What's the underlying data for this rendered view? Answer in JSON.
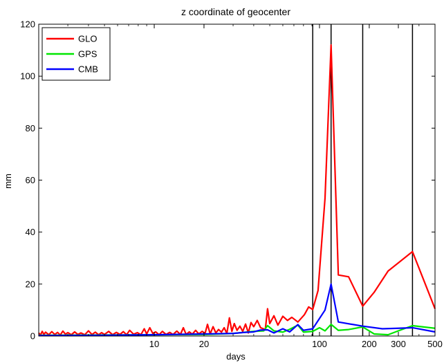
{
  "chart_data": {
    "type": "line",
    "title": "z coordinate of geocenter",
    "xlabel": "days",
    "ylabel": "mm",
    "xscale": "log",
    "xlim": [
      2,
      500
    ],
    "ylim": [
      0,
      120
    ],
    "xticks": [
      10,
      20,
      100,
      200,
      300,
      500
    ],
    "yticks": [
      0,
      20,
      40,
      60,
      80,
      100,
      120
    ],
    "grid": false,
    "legend_position": "top-left",
    "vertical_lines_x": [
      91,
      117.5,
      182.6,
      365.25
    ],
    "series": [
      {
        "name": "GLO",
        "color": "#ff0000",
        "points": [
          [
            2.0,
            1.2
          ],
          [
            2.05,
            0.4
          ],
          [
            2.1,
            1.8
          ],
          [
            2.15,
            0.6
          ],
          [
            2.2,
            1.5
          ],
          [
            2.3,
            0.5
          ],
          [
            2.4,
            1.7
          ],
          [
            2.5,
            0.6
          ],
          [
            2.6,
            1.4
          ],
          [
            2.7,
            0.4
          ],
          [
            2.8,
            1.9
          ],
          [
            2.9,
            0.7
          ],
          [
            3.0,
            1.3
          ],
          [
            3.15,
            0.5
          ],
          [
            3.3,
            1.6
          ],
          [
            3.45,
            0.6
          ],
          [
            3.6,
            1.2
          ],
          [
            3.8,
            0.5
          ],
          [
            4.0,
            2.0
          ],
          [
            4.2,
            0.6
          ],
          [
            4.4,
            1.5
          ],
          [
            4.6,
            0.5
          ],
          [
            4.8,
            1.3
          ],
          [
            5.0,
            0.6
          ],
          [
            5.3,
            1.8
          ],
          [
            5.6,
            0.5
          ],
          [
            5.9,
            1.4
          ],
          [
            6.2,
            0.6
          ],
          [
            6.5,
            1.7
          ],
          [
            6.8,
            0.5
          ],
          [
            7.1,
            2.2
          ],
          [
            7.5,
            0.7
          ],
          [
            7.9,
            1.3
          ],
          [
            8.3,
            0.5
          ],
          [
            8.7,
            2.8
          ],
          [
            9.0,
            0.8
          ],
          [
            9.4,
            3.2
          ],
          [
            9.8,
            1.0
          ],
          [
            10.2,
            1.6
          ],
          [
            10.7,
            0.5
          ],
          [
            11.2,
            1.8
          ],
          [
            11.8,
            0.6
          ],
          [
            12.4,
            1.4
          ],
          [
            13.0,
            0.6
          ],
          [
            13.7,
            1.9
          ],
          [
            14.4,
            0.6
          ],
          [
            15.0,
            3.2
          ],
          [
            15.6,
            0.6
          ],
          [
            16.3,
            1.6
          ],
          [
            17.0,
            0.7
          ],
          [
            17.8,
            2.2
          ],
          [
            18.6,
            0.8
          ],
          [
            19.5,
            1.8
          ],
          [
            20.3,
            1.0
          ],
          [
            21.0,
            4.5
          ],
          [
            21.8,
            0.8
          ],
          [
            22.7,
            3.6
          ],
          [
            23.6,
            1.2
          ],
          [
            24.5,
            2.5
          ],
          [
            25.5,
            1.5
          ],
          [
            26.5,
            3.2
          ],
          [
            27.5,
            1.0
          ],
          [
            28.5,
            7.0
          ],
          [
            29.5,
            1.8
          ],
          [
            30.5,
            4.8
          ],
          [
            31.7,
            2.2
          ],
          [
            33.0,
            3.8
          ],
          [
            34.3,
            1.8
          ],
          [
            35.7,
            4.6
          ],
          [
            37.1,
            1.2
          ],
          [
            38.5,
            5.2
          ],
          [
            40.0,
            3.6
          ],
          [
            42.0,
            6.0
          ],
          [
            44.0,
            3.2
          ],
          [
            47.0,
            2.5
          ],
          [
            48.5,
            10.5
          ],
          [
            50.0,
            4.8
          ],
          [
            53.0,
            7.8
          ],
          [
            56.0,
            4.2
          ],
          [
            60.0,
            7.6
          ],
          [
            64.0,
            6.0
          ],
          [
            68.0,
            7.2
          ],
          [
            74.0,
            5.4
          ],
          [
            81.0,
            8.2
          ],
          [
            86.0,
            11.2
          ],
          [
            91.0,
            10.2
          ],
          [
            98.0,
            17.5
          ],
          [
            108.0,
            53.0
          ],
          [
            117.5,
            112.0
          ],
          [
            130.0,
            23.5
          ],
          [
            150.0,
            22.8
          ],
          [
            182.6,
            11.5
          ],
          [
            214.0,
            16.8
          ],
          [
            260.0,
            25.0
          ],
          [
            365.25,
            32.5
          ],
          [
            500.0,
            10.5
          ]
        ]
      },
      {
        "name": "GPS",
        "color": "#00e600",
        "points": [
          [
            2.0,
            0.3
          ],
          [
            5.0,
            0.4
          ],
          [
            10.0,
            0.5
          ],
          [
            20.0,
            0.6
          ],
          [
            30.0,
            1.0
          ],
          [
            40.0,
            1.8
          ],
          [
            46.0,
            2.0
          ],
          [
            48.5,
            4.0
          ],
          [
            53.0,
            2.0
          ],
          [
            60.0,
            1.5
          ],
          [
            66.0,
            2.6
          ],
          [
            74.0,
            4.2
          ],
          [
            80.0,
            1.5
          ],
          [
            91.0,
            1.8
          ],
          [
            100.0,
            3.2
          ],
          [
            108.0,
            2.0
          ],
          [
            117.5,
            4.5
          ],
          [
            130.0,
            2.2
          ],
          [
            150.0,
            2.5
          ],
          [
            182.6,
            3.5
          ],
          [
            214.0,
            0.8
          ],
          [
            260.0,
            0.5
          ],
          [
            300.0,
            2.0
          ],
          [
            365.25,
            4.0
          ],
          [
            500.0,
            3.0
          ]
        ]
      },
      {
        "name": "CMB",
        "color": "#0000ff",
        "points": [
          [
            2.0,
            0.2
          ],
          [
            5.0,
            0.3
          ],
          [
            10.0,
            0.5
          ],
          [
            20.0,
            0.8
          ],
          [
            30.0,
            1.0
          ],
          [
            35.0,
            1.4
          ],
          [
            40.0,
            1.6
          ],
          [
            44.0,
            2.3
          ],
          [
            48.5,
            2.4
          ],
          [
            53.0,
            1.2
          ],
          [
            60.0,
            2.8
          ],
          [
            66.0,
            1.6
          ],
          [
            74.0,
            4.4
          ],
          [
            80.0,
            2.2
          ],
          [
            91.0,
            2.8
          ],
          [
            108.0,
            10.0
          ],
          [
            117.5,
            20.0
          ],
          [
            130.0,
            5.4
          ],
          [
            182.6,
            3.8
          ],
          [
            240.0,
            2.8
          ],
          [
            300.0,
            3.0
          ],
          [
            365.25,
            3.2
          ],
          [
            500.0,
            1.6
          ]
        ]
      }
    ]
  }
}
